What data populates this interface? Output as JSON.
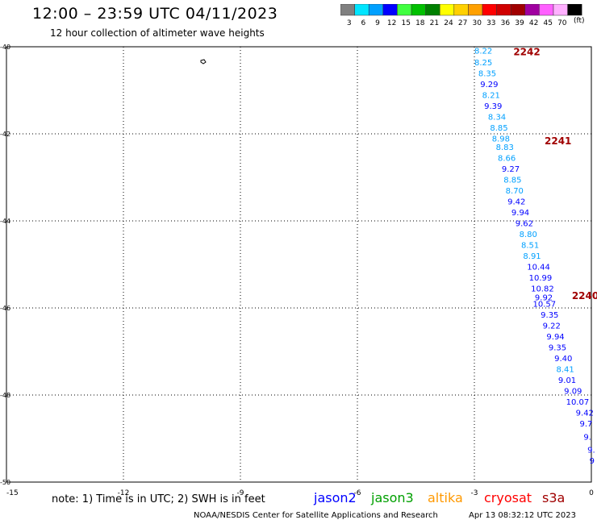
{
  "header": {
    "title": "12:00 – 23:59 UTC 04/11/2023",
    "subtitle": "12 hour collection of altimeter wave heights"
  },
  "colorbar": {
    "unit": "(ft)",
    "bins": [
      {
        "label": "3",
        "color": "#808080"
      },
      {
        "label": "6",
        "color": "#00e5ff"
      },
      {
        "label": "9",
        "color": "#00a0ff"
      },
      {
        "label": "12",
        "color": "#0000ff"
      },
      {
        "label": "15",
        "color": "#40ff40"
      },
      {
        "label": "18",
        "color": "#00c000"
      },
      {
        "label": "21",
        "color": "#008000"
      },
      {
        "label": "24",
        "color": "#ffff00"
      },
      {
        "label": "27",
        "color": "#ffd000"
      },
      {
        "label": "30",
        "color": "#ffa000"
      },
      {
        "label": "33",
        "color": "#ff0000"
      },
      {
        "label": "36",
        "color": "#d00000"
      },
      {
        "label": "39",
        "color": "#a00000"
      },
      {
        "label": "42",
        "color": "#a000a0"
      },
      {
        "label": "45",
        "color": "#ff60ff"
      },
      {
        "label": "70",
        "color": "#ffb0ff"
      },
      {
        "label": "",
        "color": "#000000"
      }
    ]
  },
  "map": {
    "lon_range": [
      -15,
      0
    ],
    "lat_range": [
      -50,
      -40
    ],
    "x_ticks": [
      "-15",
      "-12",
      "-9",
      "-6",
      "-3",
      "0"
    ],
    "y_ticks": [
      "-40",
      "-42",
      "-44",
      "-46",
      "-48",
      "-50"
    ],
    "tick_values_x": [
      -15,
      -12,
      -9,
      -6,
      -3,
      0
    ],
    "tick_values_y": [
      -40,
      -42,
      -44,
      -46,
      -48,
      -50
    ],
    "grid": true,
    "time_labels": [
      {
        "text": "2242",
        "lon": -2.0,
        "lat": -40.1,
        "color": "#a00000"
      },
      {
        "text": "2241",
        "lon": -1.2,
        "lat": -42.15,
        "color": "#a00000"
      },
      {
        "text": "2240",
        "lon": -0.5,
        "lat": -45.7,
        "color": "#a00000"
      }
    ],
    "wave_heights": [
      {
        "v": "8.22",
        "lon": -3.0,
        "lat": -40.08,
        "c": "#00a0ff"
      },
      {
        "v": "8.25",
        "lon": -3.0,
        "lat": -40.35,
        "c": "#00a0ff"
      },
      {
        "v": "8.35",
        "lon": -2.9,
        "lat": -40.6,
        "c": "#00a0ff"
      },
      {
        "v": "9.29",
        "lon": -2.85,
        "lat": -40.85,
        "c": "#0000ff"
      },
      {
        "v": "8.21",
        "lon": -2.8,
        "lat": -41.1,
        "c": "#00a0ff"
      },
      {
        "v": "9.39",
        "lon": -2.75,
        "lat": -41.35,
        "c": "#0000ff"
      },
      {
        "v": "8.34",
        "lon": -2.65,
        "lat": -41.6,
        "c": "#00a0ff"
      },
      {
        "v": "8.85",
        "lon": -2.6,
        "lat": -41.85,
        "c": "#00a0ff"
      },
      {
        "v": "8.98",
        "lon": -2.55,
        "lat": -42.1,
        "c": "#00a0ff"
      },
      {
        "v": "8.83",
        "lon": -2.45,
        "lat": -42.3,
        "c": "#00a0ff"
      },
      {
        "v": "8.66",
        "lon": -2.4,
        "lat": -42.55,
        "c": "#00a0ff"
      },
      {
        "v": "9.27",
        "lon": -2.3,
        "lat": -42.8,
        "c": "#0000ff"
      },
      {
        "v": "8.85",
        "lon": -2.25,
        "lat": -43.05,
        "c": "#00a0ff"
      },
      {
        "v": "8.70",
        "lon": -2.2,
        "lat": -43.3,
        "c": "#00a0ff"
      },
      {
        "v": "9.42",
        "lon": -2.15,
        "lat": -43.55,
        "c": "#0000ff"
      },
      {
        "v": "9.94",
        "lon": -2.05,
        "lat": -43.8,
        "c": "#0000ff"
      },
      {
        "v": "9.62",
        "lon": -1.95,
        "lat": -44.05,
        "c": "#0000ff"
      },
      {
        "v": "8.80",
        "lon": -1.85,
        "lat": -44.3,
        "c": "#00a0ff"
      },
      {
        "v": "8.51",
        "lon": -1.8,
        "lat": -44.55,
        "c": "#00a0ff"
      },
      {
        "v": "8.91",
        "lon": -1.75,
        "lat": -44.8,
        "c": "#00a0ff"
      },
      {
        "v": "10.44",
        "lon": -1.65,
        "lat": -45.05,
        "c": "#0000ff"
      },
      {
        "v": "10.99",
        "lon": -1.6,
        "lat": -45.3,
        "c": "#0000ff"
      },
      {
        "v": "10.82",
        "lon": -1.55,
        "lat": -45.55,
        "c": "#0000ff"
      },
      {
        "v": "9.92",
        "lon": -1.45,
        "lat": -45.75,
        "c": "#0000ff"
      },
      {
        "v": "10.57",
        "lon": -1.5,
        "lat": -45.9,
        "c": "#0000ff"
      },
      {
        "v": "9.35",
        "lon": -1.3,
        "lat": -46.15,
        "c": "#0000ff"
      },
      {
        "v": "9.22",
        "lon": -1.25,
        "lat": -46.4,
        "c": "#0000ff"
      },
      {
        "v": "9.94",
        "lon": -1.15,
        "lat": -46.65,
        "c": "#0000ff"
      },
      {
        "v": "9.35",
        "lon": -1.1,
        "lat": -46.9,
        "c": "#0000ff"
      },
      {
        "v": "9.40",
        "lon": -0.95,
        "lat": -47.15,
        "c": "#0000ff"
      },
      {
        "v": "8.41",
        "lon": -0.9,
        "lat": -47.4,
        "c": "#00a0ff"
      },
      {
        "v": "9.01",
        "lon": -0.85,
        "lat": -47.65,
        "c": "#0000ff"
      },
      {
        "v": "9.09",
        "lon": -0.7,
        "lat": -47.9,
        "c": "#0000ff"
      },
      {
        "v": "10.07",
        "lon": -0.65,
        "lat": -48.15,
        "c": "#0000ff"
      },
      {
        "v": "9.42",
        "lon": -0.4,
        "lat": -48.4,
        "c": "#0000ff"
      },
      {
        "v": "9.7",
        "lon": -0.3,
        "lat": -48.65,
        "c": "#0000ff"
      },
      {
        "v": "9.",
        "lon": -0.2,
        "lat": -48.95,
        "c": "#0000ff"
      },
      {
        "v": "9.",
        "lon": -0.1,
        "lat": -49.25,
        "c": "#0000ff"
      },
      {
        "v": "9",
        "lon": -0.05,
        "lat": -49.5,
        "c": "#0000ff"
      }
    ]
  },
  "footer": {
    "note": "note: 1) Time is in UTC; 2) SWH is in feet",
    "satellites": [
      {
        "name": "jason2",
        "color": "#0000ff"
      },
      {
        "name": "jason3",
        "color": "#00a000"
      },
      {
        "name": "altika",
        "color": "#ff9900"
      },
      {
        "name": "cryosat",
        "color": "#ff0000"
      },
      {
        "name": "s3a",
        "color": "#a00000"
      }
    ],
    "credit": "NOAA/NESDIS Center for Satellite Applications and Research",
    "timestamp": "Apr 13 08:32:12 UTC 2023"
  }
}
